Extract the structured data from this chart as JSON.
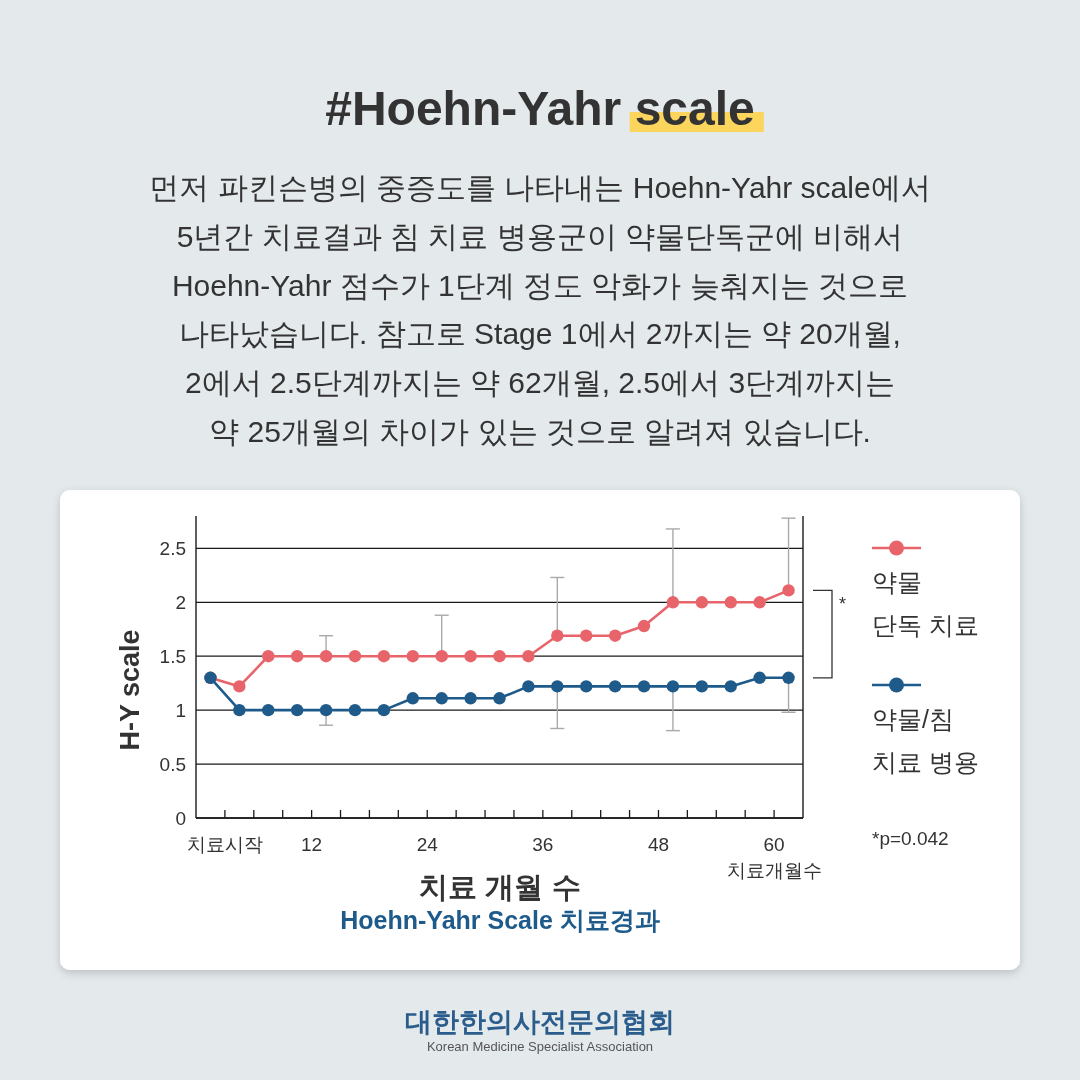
{
  "chart_data": {
    "type": "line",
    "title": "#Hoehn-Yahr scale",
    "subtitle": "먼저 파킨슨병의 중증도를 나타내는 Hoehn-Yahr scale에서\n5년간 치료결과 침 치료 병용군이 약물단독군에 비해서\nHoehn-Yahr 점수가 1단계 정도 악화가 늦춰지는 것으로\n나타났습니다. 참고로 Stage 1에서 2까지는 약 20개월,\n2에서 2.5단계까지는 약 62개월, 2.5에서 3단계까지는\n약 25개월의 차이가 있는 것으로 알려져 있습니다.",
    "xlabel": "치료 개월 수",
    "ylabel": "H-Y scale",
    "x": [
      1.5,
      4.5,
      7.5,
      10.5,
      13.5,
      16.5,
      19.5,
      22.5,
      25.5,
      28.5,
      31.5,
      34.5,
      37.5,
      40.5,
      43.5,
      46.5,
      49.5,
      52.5,
      55.5,
      58.5,
      61.5
    ],
    "xlim": [
      0,
      63
    ],
    "xticks": [
      {
        "value": 3,
        "label": "치료시작"
      },
      {
        "value": 6,
        "label": null
      },
      {
        "value": 9,
        "label": null
      },
      12,
      {
        "value": 15,
        "label": null
      },
      {
        "value": 18,
        "label": null
      },
      {
        "value": 21,
        "label": null
      },
      24,
      {
        "value": 27,
        "label": null
      },
      {
        "value": 30,
        "label": null
      },
      {
        "value": 33,
        "label": null
      },
      36,
      {
        "value": 39,
        "label": null
      },
      {
        "value": 42,
        "label": null
      },
      {
        "value": 45,
        "label": null
      },
      48,
      {
        "value": 51,
        "label": null
      },
      {
        "value": 54,
        "label": null
      },
      {
        "value": 57,
        "label": null
      },
      60
    ],
    "ylim": [
      0,
      2.8
    ],
    "yticks": [
      0,
      0.5,
      1,
      1.5,
      2,
      2.5
    ],
    "grid": "y",
    "legend": "right",
    "marker": "circle",
    "line_style": "solid",
    "series": [
      {
        "name": "약물 단독 치료",
        "color": "#e8646b",
        "values": [
          1.3,
          1.22,
          1.5,
          1.5,
          1.5,
          1.5,
          1.5,
          1.5,
          1.5,
          1.5,
          1.5,
          1.5,
          1.69,
          1.69,
          1.69,
          1.78,
          2,
          2,
          2,
          2,
          2.11
        ],
        "errors": [
          null,
          null,
          null,
          null,
          [
            1.5,
            1.69
          ],
          null,
          null,
          null,
          [
            1.5,
            1.88
          ],
          null,
          null,
          null,
          [
            1.69,
            2.23
          ],
          null,
          null,
          null,
          [
            2,
            2.68
          ],
          null,
          null,
          null,
          [
            2.11,
            2.78
          ]
        ]
      },
      {
        "name": "약물/침 치료 병용",
        "color": "#1e5a8a",
        "values": [
          1.3,
          1,
          1,
          1,
          1,
          1,
          1,
          1.11,
          1.11,
          1.11,
          1.11,
          1.22,
          1.22,
          1.22,
          1.22,
          1.22,
          1.22,
          1.22,
          1.22,
          1.3,
          1.3
        ],
        "errors": [
          null,
          null,
          null,
          null,
          [
            0.86,
            1
          ],
          null,
          null,
          null,
          null,
          null,
          null,
          null,
          [
            0.83,
            1.22
          ],
          null,
          null,
          null,
          [
            0.81,
            1.22
          ],
          null,
          null,
          null,
          [
            0.98,
            1.3
          ]
        ]
      }
    ],
    "annotations": [
      "*",
      "*p=0.042",
      "치료개월수",
      "Hoehn-Yahr Scale 치료경과",
      "대한한의사전문의협회",
      "Korean Medicine Specialist Association"
    ]
  }
}
